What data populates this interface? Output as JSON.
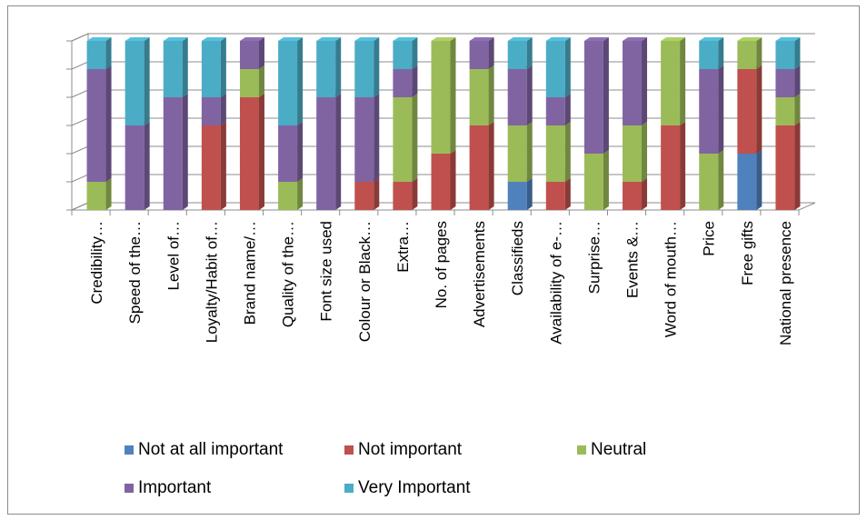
{
  "chart_data": {
    "type": "bar",
    "stacked": true,
    "style": "3d",
    "categories": [
      "Credibility…",
      "Speed of the…",
      "Level of…",
      "Loyalty/Habit of…",
      "Brand name/…",
      "Quality of the…",
      "Font size used",
      "Colour or Black…",
      "Extra…",
      "No. of pages",
      "Advertisements",
      "Classifieds",
      "Availability of e-…",
      "Surprise…",
      "Events &…",
      "Word of mouth…",
      "Price",
      "Free gifts",
      "National presence"
    ],
    "series": [
      {
        "name": "Not at all important",
        "color": "#4f81bd",
        "values": [
          0,
          0,
          0,
          0,
          0,
          0,
          0,
          0,
          0,
          0,
          0,
          1,
          0,
          0,
          0,
          0,
          0,
          2,
          0
        ]
      },
      {
        "name": "Not important",
        "color": "#c0504d",
        "values": [
          0,
          0,
          0,
          3,
          4,
          0,
          0,
          1,
          1,
          2,
          3,
          0,
          1,
          0,
          1,
          3,
          0,
          3,
          3
        ]
      },
      {
        "name": "Neutral",
        "color": "#9bbb59",
        "values": [
          1,
          0,
          0,
          0,
          1,
          1,
          0,
          0,
          3,
          4,
          2,
          2,
          2,
          2,
          2,
          3,
          2,
          1,
          1
        ]
      },
      {
        "name": "Important",
        "color": "#8064a2",
        "values": [
          4,
          3,
          4,
          1,
          1,
          2,
          4,
          3,
          1,
          0,
          1,
          2,
          1,
          4,
          3,
          0,
          3,
          0,
          1
        ]
      },
      {
        "name": "Very Important",
        "color": "#4bacc6",
        "values": [
          1,
          3,
          2,
          2,
          0,
          3,
          2,
          2,
          1,
          0,
          0,
          1,
          2,
          0,
          0,
          0,
          1,
          0,
          1
        ]
      }
    ],
    "ylim": [
      0,
      6
    ],
    "grid": true,
    "legend_position": "bottom"
  }
}
